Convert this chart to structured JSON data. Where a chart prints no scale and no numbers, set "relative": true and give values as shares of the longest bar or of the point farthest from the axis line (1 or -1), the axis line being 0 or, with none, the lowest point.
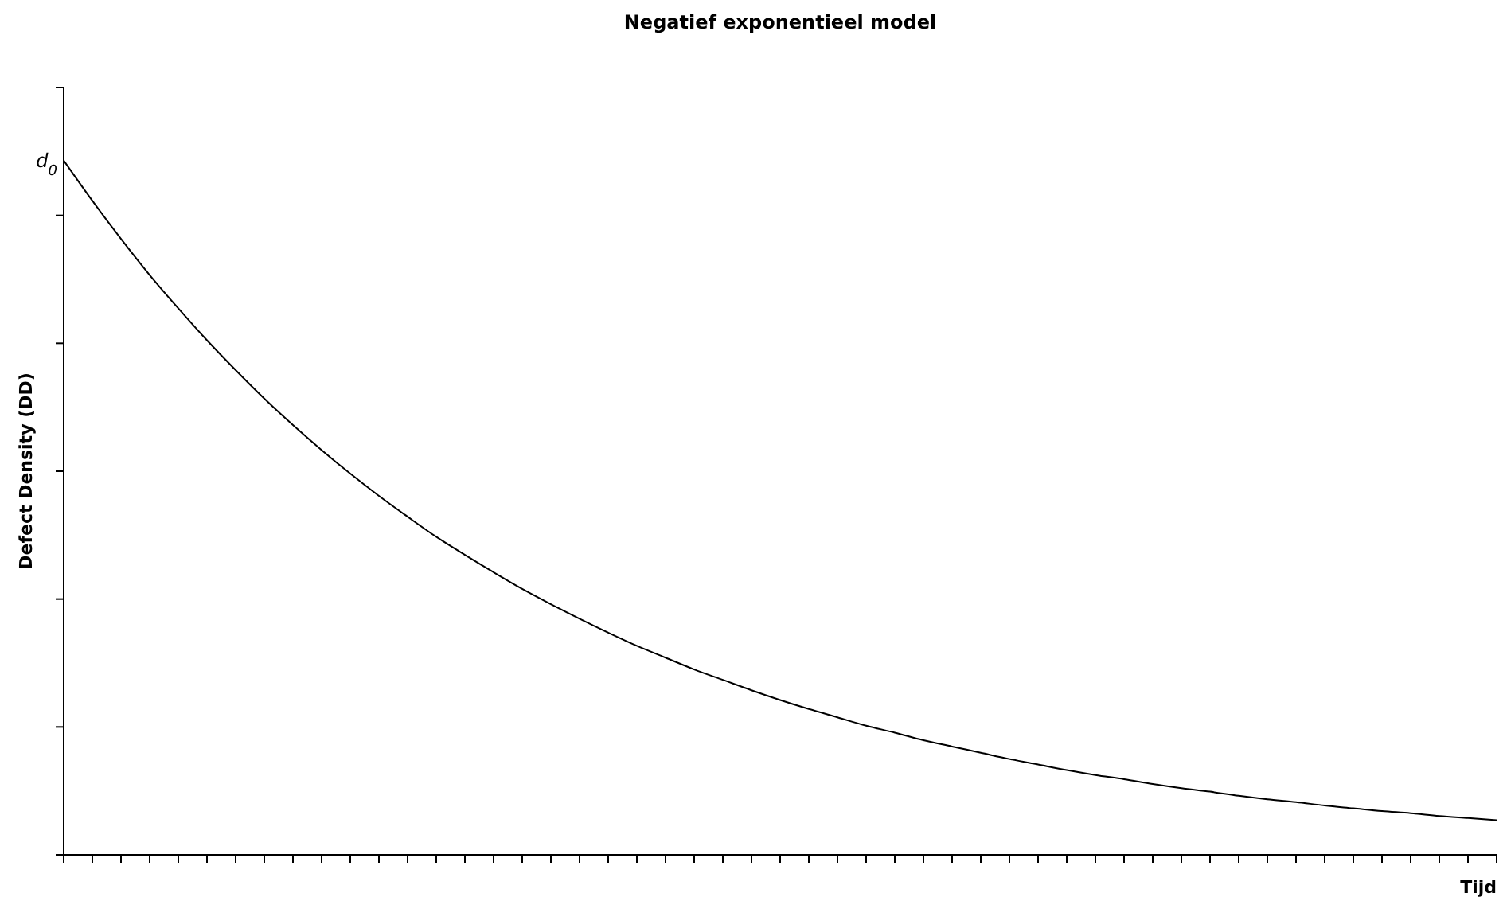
{
  "chart_data": {
    "type": "line",
    "title": "Negatief exponentieel model",
    "xlabel": "Tijd",
    "ylabel": "Defect Density (DD)",
    "relative": true,
    "categories": [
      null,
      null,
      null,
      null,
      null,
      null,
      null,
      null,
      null,
      null,
      null,
      null,
      null,
      null,
      null,
      null,
      null,
      null,
      null,
      null,
      null,
      null,
      null,
      null,
      null,
      null,
      null,
      null,
      null,
      null,
      null,
      null,
      null,
      null,
      null,
      null,
      null,
      null,
      null,
      null,
      null,
      null,
      null,
      null,
      null,
      null,
      null,
      null,
      null,
      null,
      null
    ],
    "series": [
      {
        "color": "#000000",
        "values": [
          1,
          0.942,
          0.887,
          0.835,
          0.787,
          0.741,
          0.698,
          0.657,
          0.619,
          0.583,
          0.549,
          0.517,
          0.487,
          0.458,
          0.432,
          0.407,
          0.383,
          0.361,
          0.34,
          0.32,
          0.301,
          0.284,
          0.267,
          0.252,
          0.237,
          0.223,
          0.21,
          0.198,
          0.186,
          0.176,
          0.165,
          0.156,
          0.147,
          0.138,
          0.13,
          0.122,
          0.115,
          0.109,
          0.102,
          0.096,
          0.091,
          0.085,
          0.08,
          0.076,
          0.071,
          0.067,
          0.063,
          0.06,
          0.056,
          0.053,
          0.05
        ]
      }
    ],
    "annotations": [
      "d$_{0}$"
    ],
    "marker": "none",
    "line_style": "solid",
    "grid": false
  }
}
